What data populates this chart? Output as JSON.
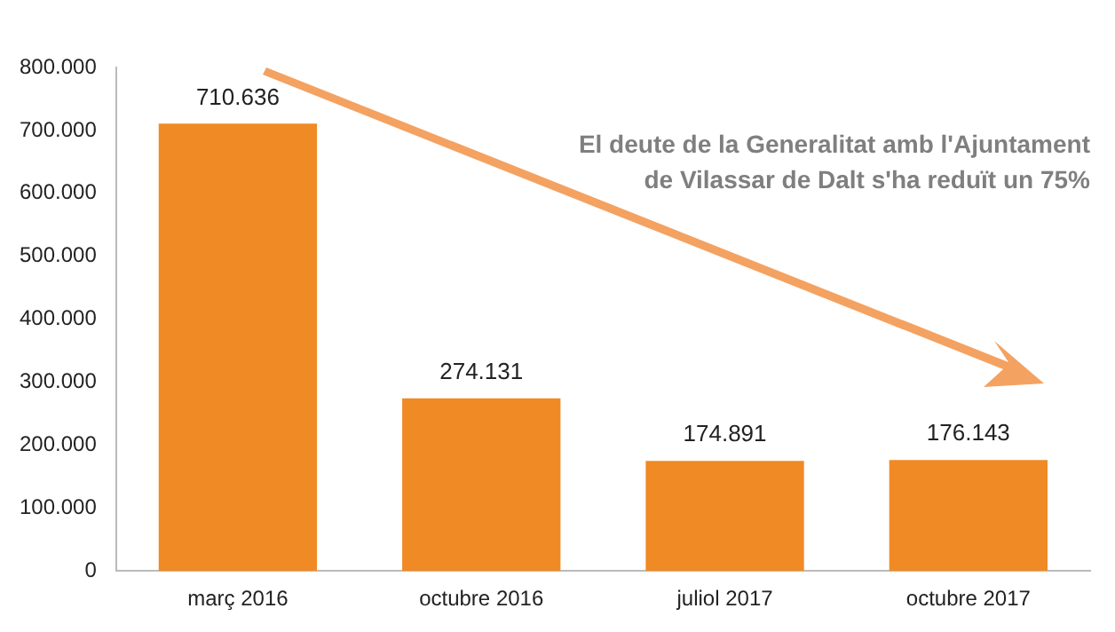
{
  "chart_data": {
    "type": "bar",
    "categories": [
      "març 2016",
      "octubre 2016",
      "juliol 2017",
      "octubre 2017"
    ],
    "values": [
      710636,
      274131,
      174891,
      176143
    ],
    "color": "#f08a24",
    "ylim": [
      0,
      800000
    ],
    "yticks": [
      {
        "value": 0,
        "label": "0"
      },
      {
        "value": 100000,
        "label": "100.000"
      },
      {
        "value": 200000,
        "label": "200.000"
      },
      {
        "value": 300000,
        "label": "300.000"
      },
      {
        "value": 400000,
        "label": "400.000"
      },
      {
        "value": 500000,
        "label": "500.000"
      },
      {
        "value": 600000,
        "label": "600.000"
      },
      {
        "value": 700000,
        "label": "700.000"
      },
      {
        "value": 800000,
        "label": "800.000"
      }
    ],
    "value_labels": [
      "710.636",
      "274.131",
      "174.891",
      "176.143"
    ],
    "grid": false,
    "legend": false,
    "annotations": [
      "El deute de la Generalitat amb l'Ajuntament de Vilassar de Dalt s'ha reduït un 75%"
    ]
  }
}
